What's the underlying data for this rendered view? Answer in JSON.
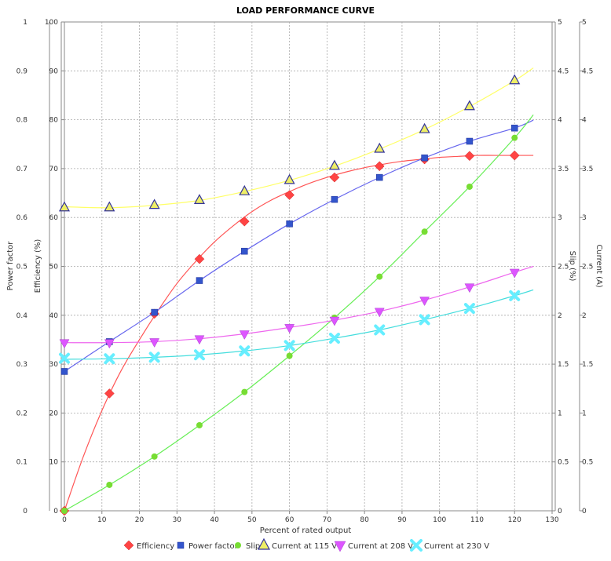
{
  "chart_data": {
    "type": "line",
    "title": "LOAD PERFORMANCE CURVE",
    "xlabel": "Percent of rated output",
    "xlim": [
      0,
      130
    ],
    "x_ticks": [
      0,
      10,
      20,
      30,
      40,
      50,
      60,
      70,
      80,
      90,
      100,
      110,
      120,
      130
    ],
    "grid": true,
    "legend_placement": "bottom",
    "axes": {
      "power_factor": {
        "label": "Power factor",
        "min": 0,
        "max": 1,
        "ticks": [
          "0",
          "0.1",
          "0.2",
          "0.3",
          "0.4",
          "0.5",
          "0.6",
          "0.7",
          "0.8",
          "0.9",
          "1"
        ]
      },
      "efficiency": {
        "label": "Efficiency (%)",
        "min": 0,
        "max": 100,
        "ticks": [
          "0",
          "10",
          "20",
          "30",
          "40",
          "50",
          "60",
          "70",
          "80",
          "90",
          "100"
        ]
      },
      "slip": {
        "label": "Slip (%)",
        "min": 0,
        "max": 5,
        "ticks": [
          "0",
          "0.5",
          "1",
          "1.5",
          "2",
          "2.5",
          "3",
          "3.5",
          "4",
          "4.5",
          "5"
        ]
      },
      "current": {
        "label": "Current (A)",
        "min": 0,
        "max": 5,
        "ticks": [
          "0",
          "0.5",
          "1",
          "1.5",
          "2",
          "2.5",
          "3",
          "3.5",
          "4",
          "4.5",
          "5"
        ]
      }
    },
    "series": [
      {
        "name": "Efficiency",
        "axis": "efficiency",
        "color": "#ff4444",
        "line_color": "#ff5555",
        "marker": "diamond",
        "x": [
          0,
          12,
          24,
          36,
          48,
          60,
          72,
          84,
          96,
          108,
          120
        ],
        "values": [
          0,
          24,
          40.3,
          51.5,
          59.2,
          64.6,
          68.2,
          70.5,
          71.9,
          72.6,
          72.7
        ],
        "curve": [
          [
            0,
            0
          ],
          [
            5,
            11
          ],
          [
            10,
            20.5
          ],
          [
            15,
            28.5
          ],
          [
            20,
            35
          ],
          [
            25,
            41
          ],
          [
            30,
            46.5
          ],
          [
            35,
            51
          ],
          [
            40,
            55
          ],
          [
            45,
            58.3
          ],
          [
            50,
            61.2
          ],
          [
            55,
            63.5
          ],
          [
            60,
            65.3
          ],
          [
            65,
            66.9
          ],
          [
            70,
            68.2
          ],
          [
            75,
            69.3
          ],
          [
            80,
            70.2
          ],
          [
            85,
            70.9
          ],
          [
            90,
            71.5
          ],
          [
            95,
            71.9
          ],
          [
            100,
            72.3
          ],
          [
            105,
            72.5
          ],
          [
            110,
            72.7
          ],
          [
            115,
            72.7
          ],
          [
            120,
            72.7
          ],
          [
            125,
            72.7
          ]
        ]
      },
      {
        "name": "Power factor",
        "axis": "power_factor",
        "color": "#3355cc",
        "line_color": "#6666ee",
        "marker": "square",
        "x": [
          0,
          12,
          24,
          36,
          48,
          60,
          72,
          84,
          96,
          108,
          120
        ],
        "values": [
          0.285,
          0.346,
          0.406,
          0.471,
          0.531,
          0.587,
          0.637,
          0.682,
          0.722,
          0.756,
          0.783
        ],
        "curve": [
          [
            0,
            0.285
          ],
          [
            125,
            0.799
          ]
        ]
      },
      {
        "name": "Slip",
        "axis": "slip",
        "color": "#77dd33",
        "line_color": "#66ee55",
        "marker": "circle",
        "x": [
          0,
          12,
          24,
          36,
          48,
          60,
          72,
          84,
          96,
          108,
          120
        ],
        "values": [
          0,
          0.265,
          0.555,
          0.875,
          1.215,
          1.585,
          1.975,
          2.395,
          2.855,
          3.315,
          3.815
        ],
        "curve": [
          [
            0,
            0
          ],
          [
            125,
            4.05
          ]
        ]
      },
      {
        "name": "Current at 115 V",
        "axis": "current",
        "color": "#eeee66",
        "line_color": "#ffff66",
        "marker": "triangle-up",
        "x": [
          0,
          12,
          24,
          36,
          48,
          60,
          72,
          84,
          96,
          108,
          120
        ],
        "values": [
          3.1,
          3.1,
          3.125,
          3.175,
          3.265,
          3.38,
          3.525,
          3.7,
          3.9,
          4.135,
          4.4
        ],
        "curve": [
          [
            0,
            3.11
          ],
          [
            125,
            4.53
          ]
        ]
      },
      {
        "name": "Current at 208 V",
        "axis": "current",
        "color": "#dd55ff",
        "line_color": "#ee66ee",
        "marker": "triangle-down",
        "x": [
          0,
          12,
          24,
          36,
          48,
          60,
          72,
          84,
          96,
          108,
          120
        ],
        "values": [
          1.72,
          1.72,
          1.73,
          1.76,
          1.81,
          1.875,
          1.95,
          2.04,
          2.155,
          2.29,
          2.44
        ],
        "curve": [
          [
            0,
            1.72
          ],
          [
            125,
            2.5
          ]
        ]
      },
      {
        "name": "Current at 230 V",
        "axis": "current",
        "color": "#66eeff",
        "line_color": "#44dddd",
        "marker": "cross",
        "x": [
          0,
          12,
          24,
          36,
          48,
          60,
          72,
          84,
          96,
          108,
          120
        ],
        "values": [
          1.56,
          1.555,
          1.57,
          1.595,
          1.635,
          1.69,
          1.765,
          1.85,
          1.955,
          2.07,
          2.2
        ],
        "curve": [
          [
            0,
            1.55
          ],
          [
            125,
            2.26
          ]
        ]
      }
    ]
  }
}
